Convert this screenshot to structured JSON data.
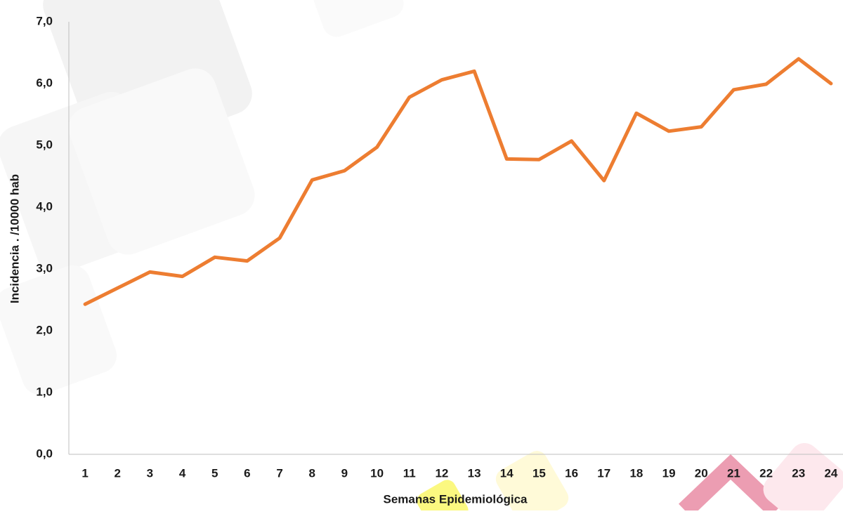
{
  "chart_data": {
    "type": "line",
    "x_label": "Semanas Epidemiológica",
    "y_label": "Incidencia . /10000 hab",
    "categories": [
      "1",
      "2",
      "3",
      "4",
      "5",
      "6",
      "7",
      "8",
      "9",
      "10",
      "11",
      "12",
      "13",
      "14",
      "15",
      "16",
      "17",
      "18",
      "19",
      "20",
      "21",
      "22",
      "23",
      "24"
    ],
    "values": [
      2.43,
      2.69,
      2.95,
      2.88,
      3.19,
      3.13,
      3.5,
      4.44,
      4.59,
      4.97,
      5.78,
      6.06,
      6.2,
      4.78,
      4.77,
      5.07,
      4.43,
      5.52,
      5.23,
      5.3,
      5.9,
      5.99,
      6.4,
      6.0
    ],
    "color": "#ed7d31",
    "ylim": [
      0,
      7
    ],
    "yticks": [
      {
        "value": 0,
        "label": "0,0"
      },
      {
        "value": 1,
        "label": "1,0"
      },
      {
        "value": 2,
        "label": "2,0"
      },
      {
        "value": 3,
        "label": "3,0"
      },
      {
        "value": 4,
        "label": "4,0"
      },
      {
        "value": 5,
        "label": "5,0"
      },
      {
        "value": 6,
        "label": "6,0"
      },
      {
        "value": 7,
        "label": "7,0"
      }
    ],
    "grid": false
  }
}
